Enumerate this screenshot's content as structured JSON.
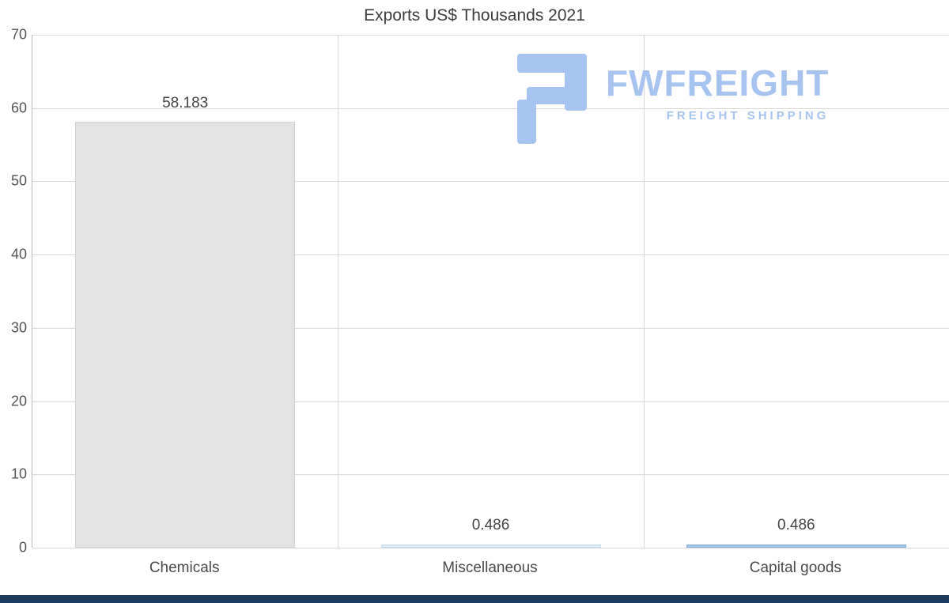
{
  "chart_data": {
    "type": "bar",
    "title": "Exports US$ Thousands 2021",
    "categories": [
      "Chemicals",
      "Miscellaneous",
      "Capital goods"
    ],
    "values": [
      58.183,
      0.486,
      0.486
    ],
    "value_labels": [
      "58.183",
      "0.486",
      "0.486"
    ],
    "bar_colors": [
      "#e3e3e3",
      "#daeaf6",
      "#9fc5e8"
    ],
    "bar_border_colors": [
      "#d2d2d2",
      "#c3dcf0",
      "#85b2da"
    ],
    "ylim": [
      0,
      70
    ],
    "yticks": [
      0,
      10,
      20,
      30,
      40,
      50,
      60,
      70
    ],
    "grid": true,
    "legend": false,
    "xlabel": "",
    "ylabel": ""
  },
  "logo": {
    "name": "FWFREIGHT",
    "subtitle": "FREIGHT SHIPPING",
    "color": "#a7c4f1"
  },
  "footer": {
    "color": "#1d3a60"
  }
}
